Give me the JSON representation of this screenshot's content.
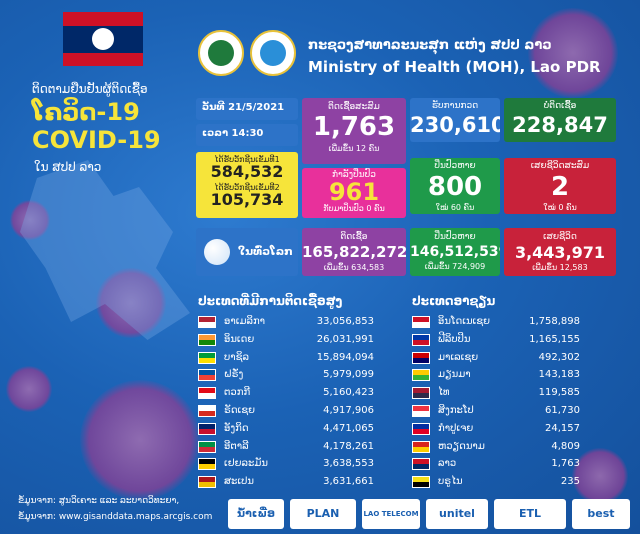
{
  "header": {
    "ministry_lao": "ກະຊວງສາທາລະນະສຸກ ແຫ່ງ ສປປ ລາວ",
    "ministry_en": "Ministry of Health (MOH), Lao PDR"
  },
  "left": {
    "line1": "ຕິດຕາມຢືນຢັນຜູ້ຕິດເຊື້ອ",
    "line2": "ໂຄວິດ-19",
    "line3": "COVID-19",
    "line4": "ໃນ ສປປ ລາວ"
  },
  "stats": {
    "date": "ວັນທີ 21/5/2021",
    "time": "ເວລາ 14:30",
    "dose1_label": "ໄດ້ຮັບວັກຊີນເຂັມທີ1",
    "dose1_value": "584,532",
    "dose2_label": "ໄດ້ຮັບວັກຊີນເຂັມທີ2",
    "dose2_value": "105,734",
    "total_label": "ຕິດເຊື້ອສະສົມ",
    "total_value": "1,763",
    "total_new": "ເພີ່ມຂຶ້ນ 12 ຄົນ",
    "treat_label": "ກຳລັງປິ່ນປົວ",
    "treat_value": "961",
    "treat_sub": "ກັບມາປິ່ນປົວ 0 ຄົນ",
    "test_label": "ຮັບການກວດ",
    "test_value": "230,610",
    "neg_label": "ບໍ່ຕິດເຊື້ອ",
    "neg_value": "228,847",
    "rec_label": "ປິ່ນປົວຫາຍ",
    "rec_value": "800",
    "rec_sub": "ໃໝ່ 60 ຄົນ",
    "death_label": "ເສຍຊີວິດສະສົມ",
    "death_value": "2",
    "death_sub": "ໃໝ່ 0 ຄົນ"
  },
  "world": {
    "label": "ໃນທົ່ວໂລກ",
    "cases_label": "ຕິດເຊື້ອ",
    "cases_value": "165,822,272",
    "cases_new": "ເພີ່ມຂຶ້ນ 634,583",
    "rec_label": "ປິ່ນປົວຫາຍ",
    "rec_value": "146,512,539",
    "rec_new": "ເພີ່ມຂຶ້ນ 724,909",
    "death_label": "ເສຍຊີວິດ",
    "death_value": "3,443,971",
    "death_new": "ເພີ່ມຂຶ້ນ 12,583"
  },
  "lists": {
    "global_title": "ປະເທດທີ່ມີການຕິດເຊື້ອສູງ",
    "asean_title": "ປະເທດອາຊຽນ",
    "global": [
      {
        "name": "ອາເມລິກາ",
        "value": "33,056,853",
        "c1": "#b22234",
        "c2": "#ffffff"
      },
      {
        "name": "ອິນເດຍ",
        "value": "26,031,991",
        "c1": "#ff9933",
        "c2": "#138808"
      },
      {
        "name": "ບາຊິລ",
        "value": "15,894,094",
        "c1": "#009c3b",
        "c2": "#ffdf00"
      },
      {
        "name": "ຝຣັ່ງ",
        "value": "5,979,099",
        "c1": "#0055a4",
        "c2": "#ef4135"
      },
      {
        "name": "ຕວກກີ",
        "value": "5,160,423",
        "c1": "#e30a17",
        "c2": "#ffffff"
      },
      {
        "name": "ຣັດເຊຍ",
        "value": "4,917,906",
        "c1": "#ffffff",
        "c2": "#d52b1e"
      },
      {
        "name": "ອັງກິດ",
        "value": "4,471,065",
        "c1": "#012169",
        "c2": "#c8102e"
      },
      {
        "name": "ອີຕາລີ",
        "value": "4,178,261",
        "c1": "#009246",
        "c2": "#ce2b37"
      },
      {
        "name": "ເຢຍລະມັນ",
        "value": "3,638,553",
        "c1": "#000000",
        "c2": "#ffce00"
      },
      {
        "name": "ສະເປນ",
        "value": "3,631,661",
        "c1": "#aa151b",
        "c2": "#f1bf00"
      }
    ],
    "asean": [
      {
        "name": "ອິນໂດເນເຊຍ",
        "value": "1,758,898",
        "c1": "#ce1126",
        "c2": "#ffffff"
      },
      {
        "name": "ຟີລິບປິນ",
        "value": "1,165,155",
        "c1": "#0038a8",
        "c2": "#ce1126"
      },
      {
        "name": "ມາເລເຊຍ",
        "value": "492,302",
        "c1": "#cc0001",
        "c2": "#010066"
      },
      {
        "name": "ມຽນມາ",
        "value": "143,183",
        "c1": "#fecb00",
        "c2": "#34b233"
      },
      {
        "name": "ໄທ",
        "value": "119,585",
        "c1": "#a51931",
        "c2": "#2d2a4a"
      },
      {
        "name": "ສິງກະໂປ",
        "value": "61,730",
        "c1": "#ef3340",
        "c2": "#ffffff"
      },
      {
        "name": "ກຳປູເຈຍ",
        "value": "24,157",
        "c1": "#032ea1",
        "c2": "#e00025"
      },
      {
        "name": "ຫວຽດນາມ",
        "value": "4,809",
        "c1": "#da251d",
        "c2": "#ffcd00"
      },
      {
        "name": "ລາວ",
        "value": "1,763",
        "c1": "#ce1126",
        "c2": "#002868"
      },
      {
        "name": "ບຣູໄນ",
        "value": "235",
        "c1": "#f7e017",
        "c2": "#000000"
      }
    ]
  },
  "footer": {
    "src1": "ຂໍ້ມູນຈາກ: ສູນວິເຄາະ ແລະ ລະບາດວິທະຍາ,",
    "src2": "ຂໍ້ມູນຈາກ: www.gisanddata.maps.arcgis.com",
    "logos": [
      "ນ້ຳເພື່ອ",
      "PLAN",
      "LAO TELECOM",
      "unitel",
      "ETL",
      "best"
    ]
  }
}
